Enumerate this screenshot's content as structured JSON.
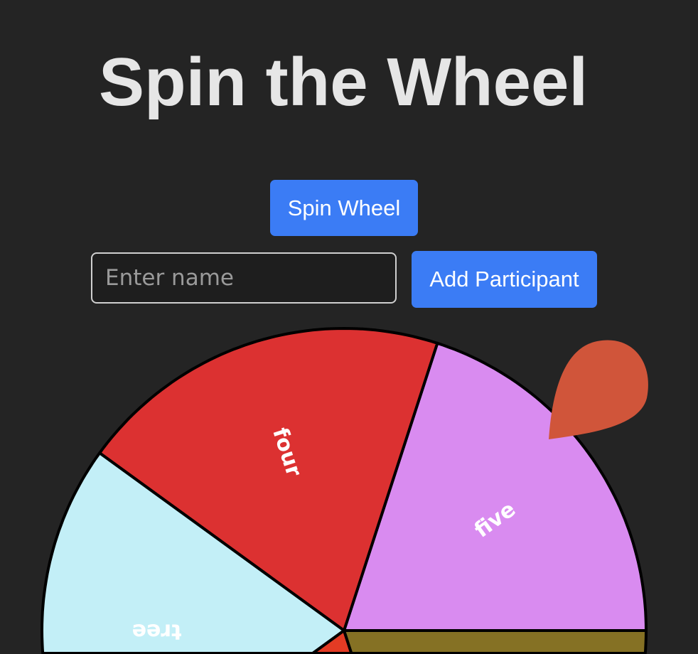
{
  "title": "Spin the Wheel",
  "spin_button": "Spin Wheel",
  "name_input": {
    "placeholder": "Enter name",
    "value": ""
  },
  "add_button": "Add Participant",
  "wheel": {
    "segments": [
      {
        "label": "five",
        "color": "#d98bf0"
      },
      {
        "label": "four",
        "color": "#dc3131"
      },
      {
        "label": "tree",
        "color": "#c3eff7"
      },
      {
        "label": "",
        "color": "#e43b24"
      },
      {
        "label": "",
        "color": "#857124"
      }
    ],
    "label_color": "#ffffff",
    "border_color": "#000000"
  },
  "pointer": {
    "color": "#d0553a"
  }
}
